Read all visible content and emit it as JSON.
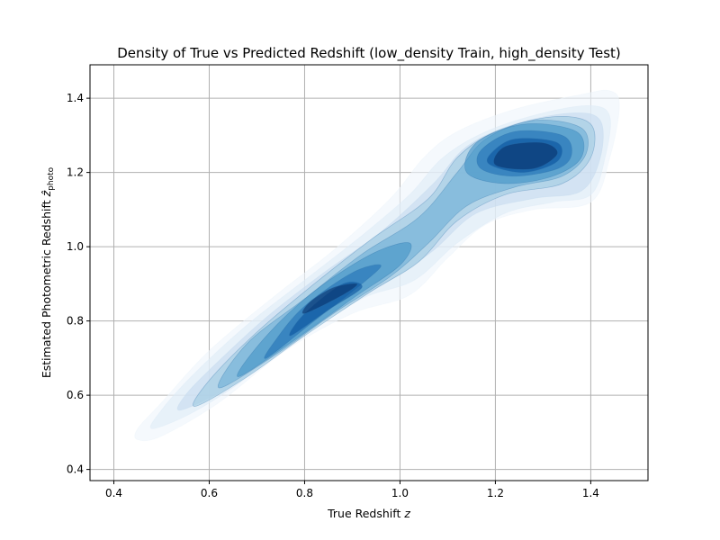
{
  "chart_data": {
    "type": "contour",
    "title": "Density of True vs Predicted Redshift (low_density Train, high_density Test)",
    "xlabel": "True Redshift",
    "xlabel_var": "z",
    "ylabel": "Estimated Photometric Redshift",
    "ylabel_var": "ẑ",
    "ylabel_sub": "photo",
    "xlim": [
      0.35,
      1.52
    ],
    "ylim": [
      0.37,
      1.49
    ],
    "xticks": [
      0.4,
      0.6,
      0.8,
      1.0,
      1.2,
      1.4
    ],
    "yticks": [
      0.4,
      0.6,
      0.8,
      1.0,
      1.2,
      1.4
    ],
    "xtick_labels": [
      "0.4",
      "0.6",
      "0.8",
      "1.0",
      "1.2",
      "1.4"
    ],
    "ytick_labels": [
      "0.4",
      "0.6",
      "0.8",
      "1.0",
      "1.2",
      "1.4"
    ],
    "grid": true,
    "colormap": [
      "#eef5fc",
      "#deebf7",
      "#c6dbef",
      "#9ecae1",
      "#6baed6",
      "#4292c6",
      "#2171b5",
      "#08519c",
      "#08306b"
    ],
    "fill_alpha": 0.6,
    "levels": [
      [
        [
          0.45,
          0.48
        ],
        [
          0.5,
          0.49
        ],
        [
          0.62,
          0.58
        ],
        [
          0.76,
          0.72
        ],
        [
          0.9,
          0.82
        ],
        [
          1.02,
          0.87
        ],
        [
          1.1,
          0.97
        ],
        [
          1.18,
          1.06
        ],
        [
          1.28,
          1.1
        ],
        [
          1.4,
          1.12
        ],
        [
          1.44,
          1.24
        ],
        [
          1.46,
          1.38
        ],
        [
          1.44,
          1.42
        ],
        [
          1.38,
          1.41
        ],
        [
          1.24,
          1.37
        ],
        [
          1.12,
          1.31
        ],
        [
          1.05,
          1.24
        ],
        [
          0.98,
          1.13
        ],
        [
          0.86,
          0.99
        ],
        [
          0.74,
          0.87
        ],
        [
          0.6,
          0.72
        ],
        [
          0.5,
          0.58
        ],
        [
          0.45,
          0.51
        ]
      ],
      [
        [
          0.48,
          0.51
        ],
        [
          0.56,
          0.55
        ],
        [
          0.66,
          0.63
        ],
        [
          0.78,
          0.75
        ],
        [
          0.92,
          0.86
        ],
        [
          1.03,
          0.91
        ],
        [
          1.12,
          1.01
        ],
        [
          1.22,
          1.09
        ],
        [
          1.32,
          1.12
        ],
        [
          1.4,
          1.14
        ],
        [
          1.43,
          1.24
        ],
        [
          1.44,
          1.35
        ],
        [
          1.4,
          1.38
        ],
        [
          1.3,
          1.36
        ],
        [
          1.18,
          1.31
        ],
        [
          1.09,
          1.24
        ],
        [
          1.02,
          1.14
        ],
        [
          0.92,
          1.03
        ],
        [
          0.8,
          0.91
        ],
        [
          0.68,
          0.79
        ],
        [
          0.57,
          0.66
        ],
        [
          0.5,
          0.56
        ]
      ],
      [
        [
          0.54,
          0.56
        ],
        [
          0.64,
          0.62
        ],
        [
          0.74,
          0.71
        ],
        [
          0.86,
          0.82
        ],
        [
          0.98,
          0.91
        ],
        [
          1.07,
          0.99
        ],
        [
          1.16,
          1.09
        ],
        [
          1.28,
          1.13
        ],
        [
          1.38,
          1.15
        ],
        [
          1.42,
          1.24
        ],
        [
          1.42,
          1.34
        ],
        [
          1.36,
          1.36
        ],
        [
          1.24,
          1.33
        ],
        [
          1.14,
          1.27
        ],
        [
          1.07,
          1.17
        ],
        [
          0.96,
          1.04
        ],
        [
          0.84,
          0.93
        ],
        [
          0.72,
          0.81
        ],
        [
          0.61,
          0.68
        ],
        [
          0.55,
          0.6
        ]
      ],
      [
        [
          0.57,
          0.57
        ],
        [
          0.68,
          0.65
        ],
        [
          0.8,
          0.76
        ],
        [
          0.94,
          0.88
        ],
        [
          1.04,
          0.96
        ],
        [
          1.12,
          1.07
        ],
        [
          1.22,
          1.14
        ],
        [
          1.34,
          1.17
        ],
        [
          1.4,
          1.24
        ],
        [
          1.4,
          1.33
        ],
        [
          1.32,
          1.35
        ],
        [
          1.2,
          1.31
        ],
        [
          1.12,
          1.24
        ],
        [
          1.06,
          1.13
        ],
        [
          0.94,
          1.02
        ],
        [
          0.82,
          0.9
        ],
        [
          0.7,
          0.77
        ],
        [
          0.6,
          0.64
        ]
      ],
      [
        [
          0.62,
          0.62
        ],
        [
          0.74,
          0.71
        ],
        [
          0.86,
          0.82
        ],
        [
          0.98,
          0.92
        ],
        [
          1.06,
          1.01
        ],
        [
          1.14,
          1.11
        ],
        [
          1.24,
          1.16
        ],
        [
          1.34,
          1.19
        ],
        [
          1.39,
          1.25
        ],
        [
          1.38,
          1.32
        ],
        [
          1.28,
          1.34
        ],
        [
          1.18,
          1.29
        ],
        [
          1.12,
          1.2
        ],
        [
          1.04,
          1.08
        ],
        [
          0.92,
          0.98
        ],
        [
          0.8,
          0.86
        ],
        [
          0.68,
          0.74
        ]
      ],
      [
        [
          0.66,
          0.65
        ],
        [
          0.78,
          0.75
        ],
        [
          0.9,
          0.86
        ],
        [
          1.0,
          0.95
        ],
        [
          1.02,
          1.01
        ],
        [
          0.94,
          0.98
        ],
        [
          0.82,
          0.88
        ],
        [
          0.72,
          0.76
        ]
      ],
      [
        [
          1.14,
          1.2
        ],
        [
          1.22,
          1.17
        ],
        [
          1.32,
          1.19
        ],
        [
          1.38,
          1.24
        ],
        [
          1.37,
          1.31
        ],
        [
          1.26,
          1.33
        ],
        [
          1.16,
          1.28
        ]
      ],
      [
        [
          0.72,
          0.7
        ],
        [
          0.82,
          0.8
        ],
        [
          0.92,
          0.9
        ],
        [
          0.96,
          0.95
        ],
        [
          0.9,
          0.93
        ],
        [
          0.8,
          0.84
        ],
        [
          0.74,
          0.75
        ]
      ],
      [
        [
          1.17,
          1.21
        ],
        [
          1.24,
          1.19
        ],
        [
          1.33,
          1.21
        ],
        [
          1.36,
          1.25
        ],
        [
          1.34,
          1.3
        ],
        [
          1.24,
          1.31
        ],
        [
          1.17,
          1.26
        ]
      ],
      [
        [
          0.77,
          0.76
        ],
        [
          0.85,
          0.83
        ],
        [
          0.92,
          0.89
        ],
        [
          0.88,
          0.9
        ],
        [
          0.8,
          0.82
        ]
      ],
      [
        [
          1.19,
          1.22
        ],
        [
          1.26,
          1.2
        ],
        [
          1.33,
          1.23
        ],
        [
          1.33,
          1.28
        ],
        [
          1.24,
          1.29
        ],
        [
          1.19,
          1.25
        ]
      ],
      [
        [
          0.8,
          0.82
        ],
        [
          0.88,
          0.87
        ],
        [
          0.91,
          0.9
        ],
        [
          0.86,
          0.89
        ],
        [
          0.81,
          0.85
        ]
      ],
      [
        [
          1.2,
          1.22
        ],
        [
          1.28,
          1.21
        ],
        [
          1.33,
          1.25
        ],
        [
          1.3,
          1.28
        ],
        [
          1.22,
          1.27
        ]
      ]
    ],
    "level_colors": [
      0,
      1,
      2,
      3,
      4,
      5,
      5,
      6,
      6,
      7,
      7,
      8,
      8
    ]
  }
}
